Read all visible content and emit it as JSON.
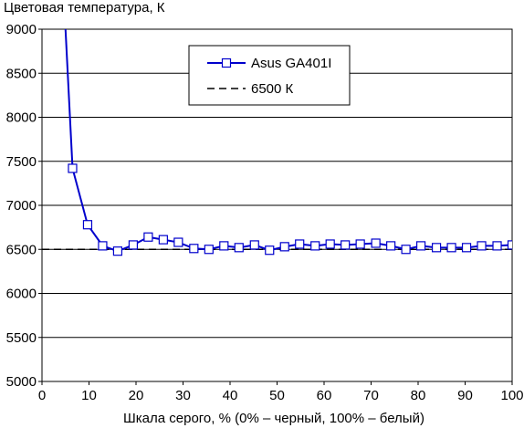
{
  "chart_data": {
    "type": "line",
    "title": "",
    "ylabel": "Цветовая температура, К",
    "xlabel": "Шкала серого, % (0% – черный, 100% – белый)",
    "xlim": [
      0,
      100
    ],
    "ylim": [
      5000,
      9000
    ],
    "xticks": [
      "0",
      "10",
      "20",
      "30",
      "40",
      "50",
      "60",
      "70",
      "80",
      "90",
      "100"
    ],
    "yticks": [
      "5000",
      "5500",
      "6000",
      "6500",
      "7000",
      "7500",
      "8000",
      "8500",
      "9000"
    ],
    "grid": "horizontal",
    "legend_position": "top-center",
    "series": [
      {
        "name": "Asus GA401I",
        "color": "#0000cc",
        "marker": "square",
        "x": [
          6.5,
          9.7,
          12.9,
          16.1,
          19.4,
          22.6,
          25.8,
          29.0,
          32.3,
          35.5,
          38.7,
          41.9,
          45.2,
          48.4,
          51.6,
          54.8,
          58.1,
          61.3,
          64.5,
          67.7,
          71.0,
          74.2,
          77.4,
          80.6,
          83.9,
          87.1,
          90.3,
          93.5,
          96.8,
          100
        ],
        "y": [
          7420,
          6780,
          6540,
          6480,
          6550,
          6640,
          6610,
          6580,
          6510,
          6500,
          6540,
          6520,
          6550,
          6490,
          6530,
          6560,
          6540,
          6560,
          6550,
          6560,
          6570,
          6540,
          6500,
          6540,
          6520,
          6520,
          6520,
          6540,
          6540,
          6550
        ],
        "offscale_start": [
          5,
          9000
        ]
      },
      {
        "name": "6500 К",
        "color": "#000000",
        "style": "dashed",
        "x": [
          0,
          100
        ],
        "y": [
          6500,
          6500
        ]
      }
    ]
  }
}
